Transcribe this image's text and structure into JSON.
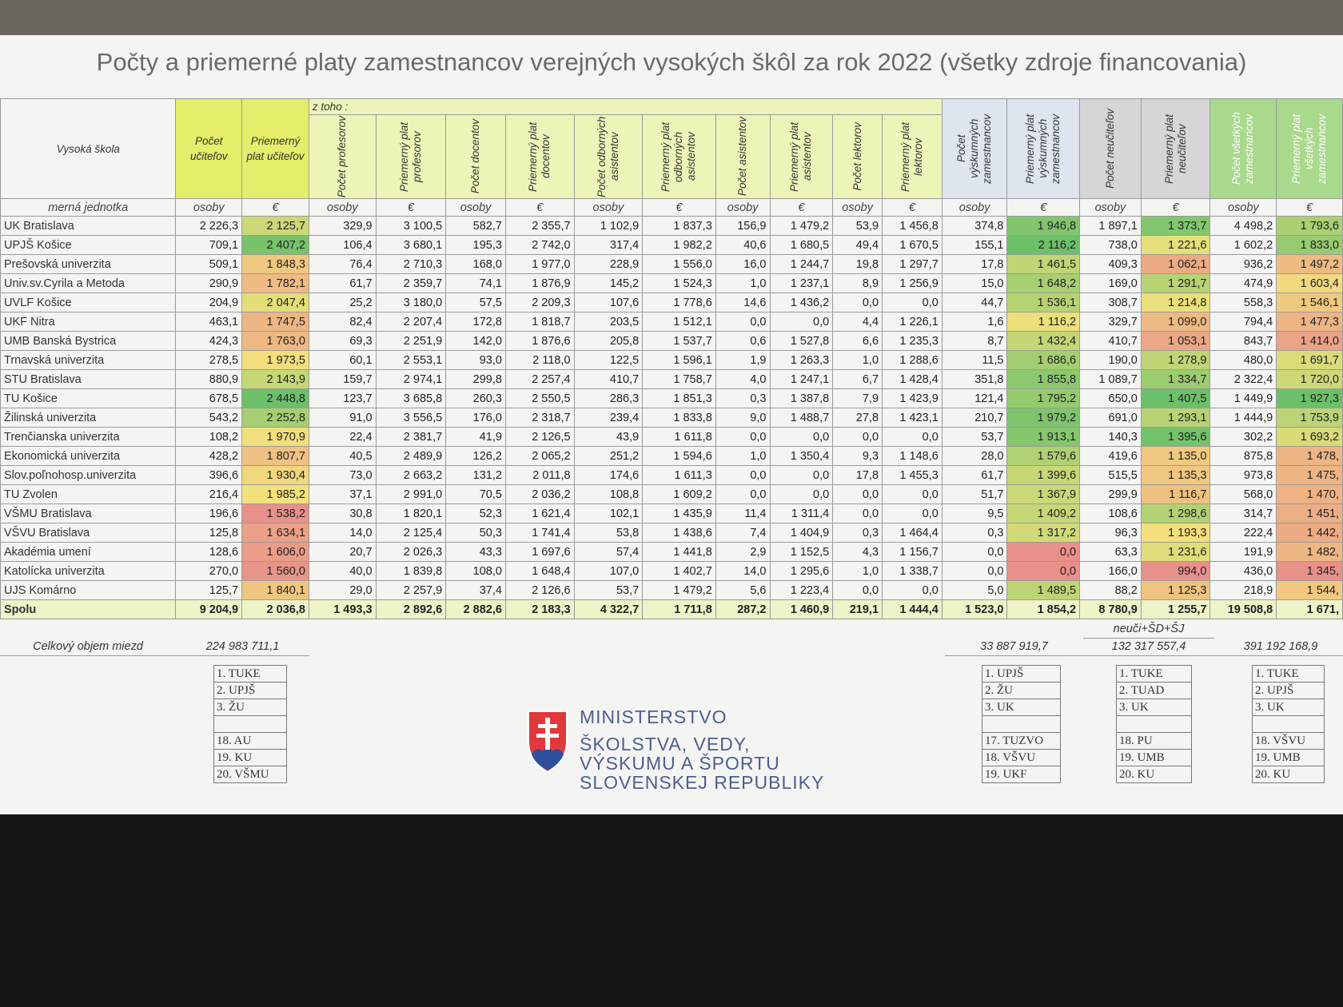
{
  "title": "Počty a priemerné platy zamestnancov verejných vysokých škôl za rok 2022 (všetky zdroje financovania)",
  "table": {
    "header_first": "Vysoká škola",
    "subheader": "z toho :",
    "columns": [
      "Počet učiteľov",
      "Priemerný plat učiteľov",
      "Počet profesorov",
      "Priemerný plat profesorov",
      "Počet docentov",
      "Priemerný plat docentov",
      "Počet odborných asistentov",
      "Priemerný plat odborných asistentov",
      "Počet asistentov",
      "Priemerný plat asistentov",
      "Počet lektorov",
      "Priemerný plat lektorov",
      "Počet výskumných zamestnancov",
      "Priemerný plat výskumných zamestnancov",
      "Počet neučiteľov",
      "Priemerný plat neučiteľov",
      "Počet všetkých zamestnancov",
      "Priemerný plat všetkých zamestnancov"
    ],
    "unit_label": "merná jednotka",
    "units": [
      "osoby",
      "€",
      "osoby",
      "€",
      "osoby",
      "€",
      "osoby",
      "€",
      "osoby",
      "€",
      "osoby",
      "€",
      "osoby",
      "€",
      "osoby",
      "€",
      "osoby",
      "€"
    ],
    "rows": [
      [
        "UK Bratislava",
        "2 226,3",
        "2 125,7",
        "329,9",
        "3 100,5",
        "582,7",
        "2 355,7",
        "1 102,9",
        "1 837,3",
        "156,9",
        "1 479,2",
        "53,9",
        "1 456,8",
        "374,8",
        "1 946,8",
        "1 897,1",
        "1 373,7",
        "4 498,2",
        "1 793,6"
      ],
      [
        "UPJŠ Košice",
        "709,1",
        "2 407,2",
        "106,4",
        "3 680,1",
        "195,3",
        "2 742,0",
        "317,4",
        "1 982,2",
        "40,6",
        "1 680,5",
        "49,4",
        "1 670,5",
        "155,1",
        "2 116,2",
        "738,0",
        "1 221,6",
        "1 602,2",
        "1 833,0"
      ],
      [
        "Prešovská univerzita",
        "509,1",
        "1 848,3",
        "76,4",
        "2 710,3",
        "168,0",
        "1 977,0",
        "228,9",
        "1 556,0",
        "16,0",
        "1 244,7",
        "19,8",
        "1 297,7",
        "17,8",
        "1 461,5",
        "409,3",
        "1 062,1",
        "936,2",
        "1 497,2"
      ],
      [
        "Univ.sv.Cyrila a Metoda",
        "290,9",
        "1 782,1",
        "61,7",
        "2 359,7",
        "74,1",
        "1 876,9",
        "145,2",
        "1 524,3",
        "1,0",
        "1 237,1",
        "8,9",
        "1 256,9",
        "15,0",
        "1 648,2",
        "169,0",
        "1 291,7",
        "474,9",
        "1 603,4"
      ],
      [
        "UVLF Košice",
        "204,9",
        "2 047,4",
        "25,2",
        "3 180,0",
        "57,5",
        "2 209,3",
        "107,6",
        "1 778,6",
        "14,6",
        "1 436,2",
        "0,0",
        "0,0",
        "44,7",
        "1 536,1",
        "308,7",
        "1 214,8",
        "558,3",
        "1 546,1"
      ],
      [
        "UKF Nitra",
        "463,1",
        "1 747,5",
        "82,4",
        "2 207,4",
        "172,8",
        "1 818,7",
        "203,5",
        "1 512,1",
        "0,0",
        "0,0",
        "4,4",
        "1 226,1",
        "1,6",
        "1 116,2",
        "329,7",
        "1 099,0",
        "794,4",
        "1 477,3"
      ],
      [
        "UMB Banská Bystrica",
        "424,3",
        "1 763,0",
        "69,3",
        "2 251,9",
        "142,0",
        "1 876,6",
        "205,8",
        "1 537,7",
        "0,6",
        "1 527,8",
        "6,6",
        "1 235,3",
        "8,7",
        "1 432,4",
        "410,7",
        "1 053,1",
        "843,7",
        "1 414,0"
      ],
      [
        "Trnavská univerzita",
        "278,5",
        "1 973,5",
        "60,1",
        "2 553,1",
        "93,0",
        "2 118,0",
        "122,5",
        "1 596,1",
        "1,9",
        "1 263,3",
        "1,0",
        "1 288,6",
        "11,5",
        "1 686,6",
        "190,0",
        "1 278,9",
        "480,0",
        "1 691,7"
      ],
      [
        "STU Bratislava",
        "880,9",
        "2 143,9",
        "159,7",
        "2 974,1",
        "299,8",
        "2 257,4",
        "410,7",
        "1 758,7",
        "4,0",
        "1 247,1",
        "6,7",
        "1 428,4",
        "351,8",
        "1 855,8",
        "1 089,7",
        "1 334,7",
        "2 322,4",
        "1 720,0"
      ],
      [
        "TU Košice",
        "678,5",
        "2 448,8",
        "123,7",
        "3 685,8",
        "260,3",
        "2 550,5",
        "286,3",
        "1 851,3",
        "0,3",
        "1 387,8",
        "7,9",
        "1 423,9",
        "121,4",
        "1 795,2",
        "650,0",
        "1 407,5",
        "1 449,9",
        "1 927,3"
      ],
      [
        "Žilinská univerzita",
        "543,2",
        "2 252,8",
        "91,0",
        "3 556,5",
        "176,0",
        "2 318,7",
        "239,4",
        "1 833,8",
        "9,0",
        "1 488,7",
        "27,8",
        "1 423,1",
        "210,7",
        "1 979,2",
        "691,0",
        "1 293,1",
        "1 444,9",
        "1 753,9"
      ],
      [
        "Trenčianska univerzita",
        "108,2",
        "1 970,9",
        "22,4",
        "2 381,7",
        "41,9",
        "2 126,5",
        "43,9",
        "1 611,8",
        "0,0",
        "0,0",
        "0,0",
        "0,0",
        "53,7",
        "1 913,1",
        "140,3",
        "1 395,6",
        "302,2",
        "1 693,2"
      ],
      [
        "Ekonomická univerzita",
        "428,2",
        "1 807,7",
        "40,5",
        "2 489,9",
        "126,2",
        "2 065,2",
        "251,2",
        "1 594,6",
        "1,0",
        "1 350,4",
        "9,3",
        "1 148,6",
        "28,0",
        "1 579,6",
        "419,6",
        "1 135,0",
        "875,8",
        "1 478,"
      ],
      [
        "Slov.poľnohosp.univerzita",
        "396,6",
        "1 930,4",
        "73,0",
        "2 663,2",
        "131,2",
        "2 011,8",
        "174,6",
        "1 611,3",
        "0,0",
        "0,0",
        "17,8",
        "1 455,3",
        "61,7",
        "1 399,6",
        "515,5",
        "1 135,3",
        "973,8",
        "1 475,"
      ],
      [
        "TU Zvolen",
        "216,4",
        "1 985,2",
        "37,1",
        "2 991,0",
        "70,5",
        "2 036,2",
        "108,8",
        "1 609,2",
        "0,0",
        "0,0",
        "0,0",
        "0,0",
        "51,7",
        "1 367,9",
        "299,9",
        "1 116,7",
        "568,0",
        "1 470,"
      ],
      [
        "VŠMU Bratislava",
        "196,6",
        "1 538,2",
        "30,8",
        "1 820,1",
        "52,3",
        "1 621,4",
        "102,1",
        "1 435,9",
        "11,4",
        "1 311,4",
        "0,0",
        "0,0",
        "9,5",
        "1 409,2",
        "108,6",
        "1 298,6",
        "314,7",
        "1 451,"
      ],
      [
        "VŠVU Bratislava",
        "125,8",
        "1 634,1",
        "14,0",
        "2 125,4",
        "50,3",
        "1 741,4",
        "53,8",
        "1 438,6",
        "7,4",
        "1 404,9",
        "0,3",
        "1 464,4",
        "0,3",
        "1 317,2",
        "96,3",
        "1 193,3",
        "222,4",
        "1 442,"
      ],
      [
        "Akadémia umení",
        "128,6",
        "1 606,0",
        "20,7",
        "2 026,3",
        "43,3",
        "1 697,6",
        "57,4",
        "1 441,8",
        "2,9",
        "1 152,5",
        "4,3",
        "1 156,7",
        "0,0",
        "0,0",
        "63,3",
        "1 231,6",
        "191,9",
        "1 482,"
      ],
      [
        "Katolícka univerzita",
        "270,0",
        "1 560,0",
        "40,0",
        "1 839,8",
        "108,0",
        "1 648,4",
        "107,0",
        "1 402,7",
        "14,0",
        "1 295,6",
        "1,0",
        "1 338,7",
        "0,0",
        "0,0",
        "166,0",
        "994,0",
        "436,0",
        "1 345,"
      ],
      [
        "UJS Komárno",
        "125,7",
        "1 840,1",
        "29,0",
        "2 257,9",
        "37,4",
        "2 126,6",
        "53,7",
        "1 479,2",
        "5,6",
        "1 223,4",
        "0,0",
        "0,0",
        "5,0",
        "1 489,5",
        "88,2",
        "1 125,3",
        "218,9",
        "1 544,"
      ]
    ],
    "total": [
      "Spolu",
      "9 204,9",
      "2 036,8",
      "1 493,3",
      "2 892,6",
      "2 882,6",
      "2 183,3",
      "4 322,7",
      "1 711,8",
      "287,2",
      "1 460,9",
      "219,1",
      "1 444,4",
      "1 523,0",
      "1 854,2",
      "8 780,9",
      "1 255,7",
      "19 508,8",
      "1 671,"
    ],
    "note": "neuči+ŠD+ŠJ",
    "wages_label": "Celkový objem miezd",
    "wages": [
      "224 983 711,1",
      "33 887 919,7",
      "132 317 557,4",
      "391 192 168,9"
    ],
    "rankings": [
      [
        "1. TUKE",
        "2. UPJŠ",
        "3. ŽU",
        "18. AU",
        "19. KU",
        "20. VŠMU"
      ],
      [
        "1. UPJŠ",
        "2. ŽU",
        "3. UK",
        "17. TUZVO",
        "18. VŠVU",
        "19. UKF"
      ],
      [
        "1. TUKE",
        "2. TUAD",
        "3. UK",
        "18. PU",
        "19. UMB",
        "20. KU"
      ],
      [
        "1. TUKE",
        "2. UPJŠ",
        "3. UK",
        "18. VŠVU",
        "19. UMB",
        "20. KU"
      ]
    ],
    "color_scale_columns": [
      2,
      14,
      16,
      18
    ],
    "color_scale": {
      "low": "#e8908a",
      "mid": "#f3e27c",
      "high": "#6cc06a"
    }
  },
  "logo": [
    "MINISTERSTVO",
    "ŠKOLSTVA, VEDY,",
    "VÝSKUMU A ŠPORTU",
    "SLOVENSKEJ REPUBLIKY"
  ]
}
